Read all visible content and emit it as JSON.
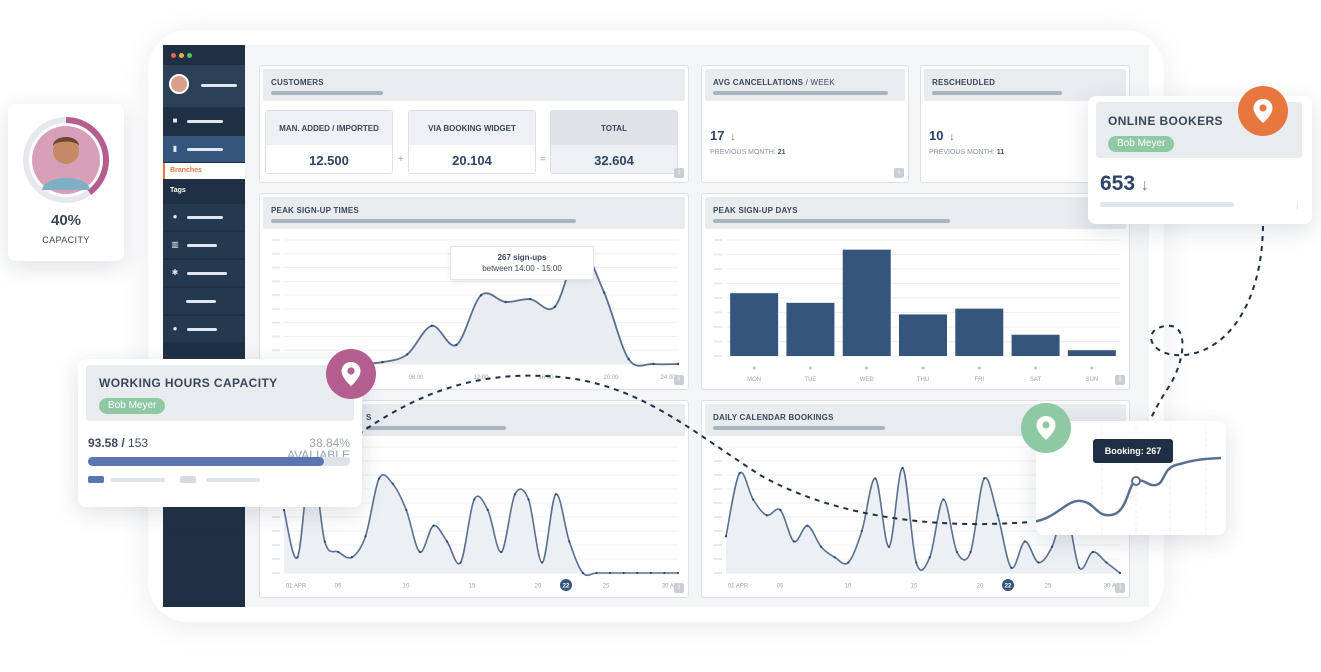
{
  "colors": {
    "navy": "#1f3044",
    "accent_blue": "#35557d",
    "orange": "#e8763f",
    "plum": "#b35e8e",
    "green": "#8fc9a3",
    "line": "#5b6f93"
  },
  "profile": {
    "percent": "40%",
    "label": "CAPACITY",
    "ring_fraction": 0.4
  },
  "sidebar": {
    "items_icons": [
      "briefcase-icon",
      "building-icon",
      "users-icon",
      "inventory-icon",
      "settings-icon",
      "blank",
      "person-icon"
    ],
    "branches_label": "Branches",
    "tags_label": "Tags"
  },
  "customers": {
    "title": "CUSTOMERS",
    "boxes": [
      {
        "label": "MAN. ADDED / IMPORTED",
        "value": "12.500"
      },
      {
        "label": "VIA BOOKING WIDGET",
        "value": "20.104"
      },
      {
        "label": "TOTAL",
        "value": "32.604"
      }
    ],
    "plus": "+",
    "equals": "=",
    "info": "i"
  },
  "avg_cancellations": {
    "title": "AVG CANCELLATIONS",
    "title_suffix": " / WEEK",
    "value": "17",
    "arrow": "↓",
    "prev_label": "PREVIOUS MONTH:",
    "prev_value": "21",
    "info": "i"
  },
  "rescheduled": {
    "title": "RESCHEUDLED",
    "value": "10",
    "arrow": "↓",
    "prev_label": "PREVIOUS MONTH:",
    "prev_value": "11",
    "info": "i"
  },
  "online_bookers": {
    "title": "ONLINE BOOKERS",
    "chip": "Bob Meyer",
    "value": "653",
    "arrow": "↓",
    "info": "i"
  },
  "peak_times": {
    "title": "PEAK SIGN-UP TIMES",
    "x_ticks": [
      "08:00",
      "12:00",
      "16:00",
      "20:00",
      "24:00"
    ],
    "tooltip_line1": "267 sign-ups",
    "tooltip_line2": "between 14:00 - 15:00",
    "info": "i"
  },
  "chart_data": [
    {
      "type": "bar",
      "title": "PEAK SIGN-UP DAYS",
      "categories": [
        "MON",
        "TUE",
        "WED",
        "THU",
        "FRI",
        "SAT",
        "SUN"
      ],
      "values": [
        65,
        55,
        110,
        43,
        49,
        22,
        6
      ],
      "ylim": [
        0,
        120
      ]
    },
    {
      "type": "line",
      "title": "PEAK SIGN-UP TIMES",
      "x": [
        "00:00",
        "02:00",
        "04:00",
        "06:00",
        "08:00",
        "10:00",
        "12:00",
        "13:00",
        "14:00",
        "15:00",
        "16:00",
        "17:00",
        "18:00",
        "19:00",
        "20:00",
        "22:00",
        "24:00"
      ],
      "values": [
        0,
        0,
        0,
        0,
        2,
        10,
        40,
        20,
        72,
        65,
        68,
        60,
        120,
        75,
        5,
        0,
        0
      ],
      "annotation": "267 sign-ups between 14:00 - 15:00"
    },
    {
      "type": "line",
      "title": "DAILY CALENDAR BOOKINGS",
      "x_ticks": [
        "01 APR",
        "05",
        "10",
        "15",
        "20",
        "22",
        "25",
        "30 APR"
      ],
      "values": [
        35,
        95,
        70,
        55,
        60,
        30,
        45,
        25,
        15,
        10,
        40,
        90,
        25,
        100,
        10,
        15,
        70,
        20,
        20,
        90,
        55,
        5,
        30,
        10,
        25,
        60,
        5,
        20,
        10,
        0
      ]
    },
    {
      "type": "line",
      "title": "",
      "x_ticks": [
        "01 APR",
        "05",
        "10",
        "15",
        "20",
        "22",
        "25",
        "30 APR"
      ],
      "values": [
        60,
        15,
        110,
        30,
        20,
        15,
        35,
        90,
        85,
        60,
        20,
        45,
        30,
        10,
        70,
        60,
        20,
        75,
        70,
        10,
        75,
        30,
        0,
        0,
        0,
        0,
        0,
        0,
        0,
        0
      ]
    }
  ],
  "daily_bookings": {
    "title": "DAILY CALENDAR BOOKINGS",
    "info": "i"
  },
  "second_line": {
    "title_suffix": "S",
    "info": "i"
  },
  "working_hours": {
    "title": "WORKING HOURS CAPACITY",
    "chip": "Bob Meyer",
    "used": "93.58 /",
    "total": "153",
    "percent": "38.84%",
    "available": "AVALIABLE",
    "fill_fraction": 0.9
  },
  "booking_popup": {
    "label": "Booking: 267"
  }
}
